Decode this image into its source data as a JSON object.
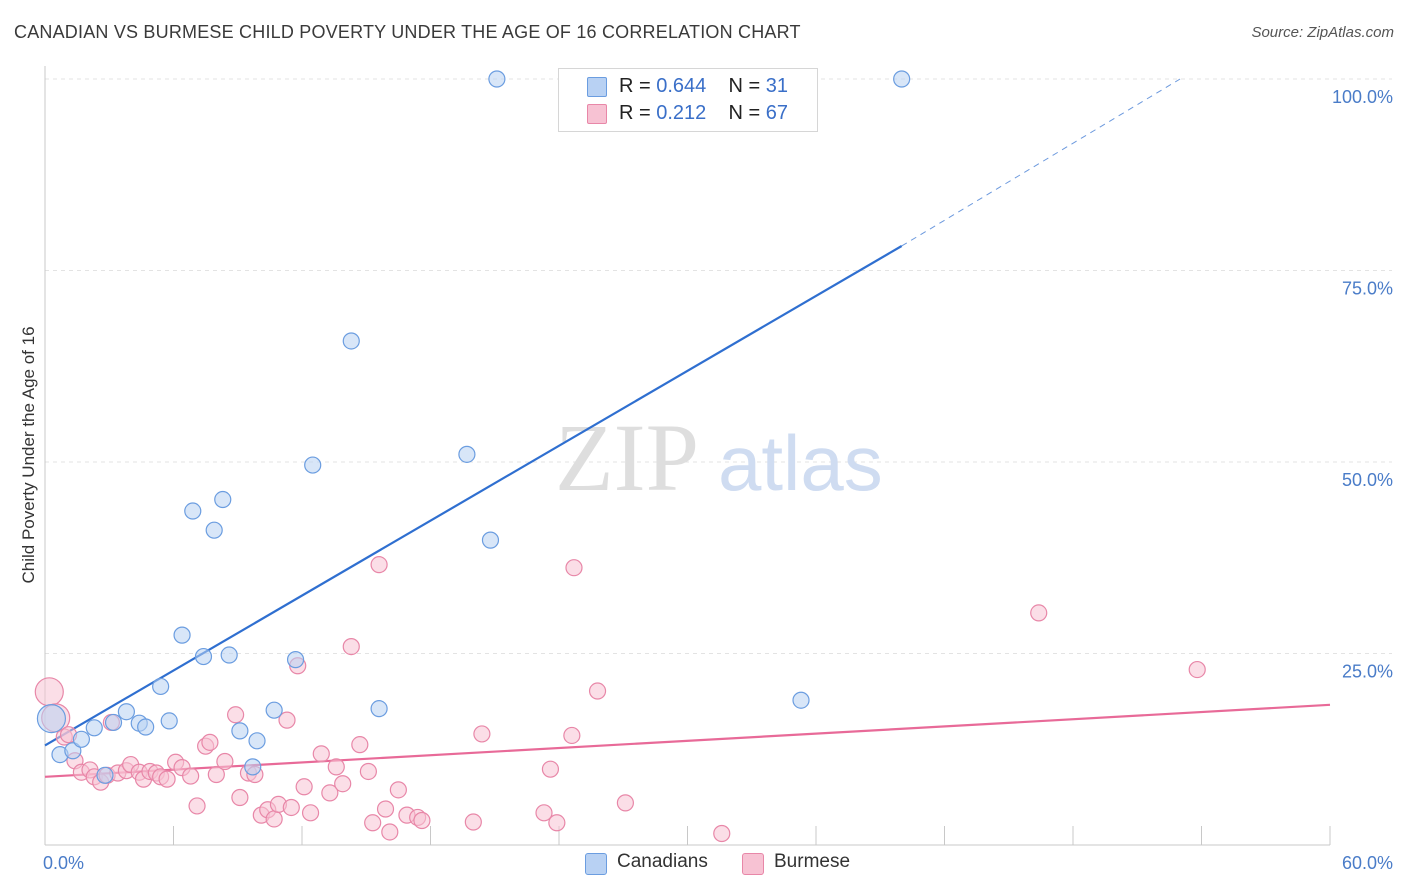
{
  "title": "CANADIAN VS BURMESE CHILD POVERTY UNDER THE AGE OF 16 CORRELATION CHART",
  "source": "Source: ZipAtlas.com",
  "watermark": {
    "zip": "ZIP",
    "atlas": "atlas"
  },
  "legend": {
    "items": [
      {
        "r_label": "R =",
        "r_value": "0.644",
        "n_label": "N =",
        "n_value": "31"
      },
      {
        "r_label": "R =",
        "r_value": "0.212",
        "n_label": "N =",
        "n_value": "67"
      }
    ]
  },
  "bottom_legend": [
    "Canadians",
    "Burmese"
  ],
  "chart_data": {
    "type": "scatter",
    "title": "CANADIAN VS BURMESE CHILD POVERTY UNDER THE AGE OF 16 CORRELATION CHART",
    "xlabel": "",
    "ylabel": "Child Poverty Under the Age of 16",
    "xlim": [
      0,
      60
    ],
    "ylim": [
      0,
      100
    ],
    "x_tick_labels": [
      "0.0%",
      "60.0%"
    ],
    "y_ticks": [
      25,
      50,
      75,
      100
    ],
    "y_tick_labels": [
      "25.0%",
      "50.0%",
      "75.0%",
      "100.0%"
    ],
    "grid": true,
    "colors": {
      "canadians": "#6b9de0",
      "canadians_fill": "#b8d1f3",
      "burmese": "#e887a8",
      "burmese_fill": "#f7c2d3",
      "line_canadians": "#2f6fd0",
      "line_burmese": "#e86a98"
    },
    "series": [
      {
        "name": "Canadians",
        "points": [
          [
            0.3,
            16.5
          ],
          [
            0.7,
            11.8
          ],
          [
            1.3,
            12.3
          ],
          [
            1.7,
            13.8
          ],
          [
            2.3,
            15.3
          ],
          [
            2.8,
            9.1
          ],
          [
            3.2,
            16.0
          ],
          [
            3.8,
            17.4
          ],
          [
            4.4,
            15.9
          ],
          [
            4.7,
            15.4
          ],
          [
            5.4,
            20.7
          ],
          [
            5.8,
            16.2
          ],
          [
            6.4,
            27.4
          ],
          [
            6.9,
            43.6
          ],
          [
            7.4,
            24.6
          ],
          [
            7.9,
            41.1
          ],
          [
            8.3,
            45.1
          ],
          [
            8.6,
            24.8
          ],
          [
            9.1,
            14.9
          ],
          [
            9.7,
            10.2
          ],
          [
            9.9,
            13.6
          ],
          [
            10.7,
            17.6
          ],
          [
            11.7,
            24.2
          ],
          [
            12.5,
            49.6
          ],
          [
            14.3,
            65.8
          ],
          [
            15.6,
            17.8
          ],
          [
            19.7,
            51.0
          ],
          [
            20.8,
            39.8
          ],
          [
            21.1,
            100.0
          ],
          [
            35.3,
            18.9
          ],
          [
            40.0,
            100.0
          ]
        ],
        "trend": {
          "x0": 0,
          "y0": 13.0,
          "x1": 40.0,
          "y1": 78.2,
          "dashed_to_x": 53.0,
          "dashed_to_y": 100.0
        }
      },
      {
        "name": "Burmese",
        "points": [
          [
            0.2,
            20.0
          ],
          [
            0.5,
            16.6
          ],
          [
            0.9,
            14.1
          ],
          [
            1.1,
            14.4
          ],
          [
            1.4,
            11.0
          ],
          [
            1.7,
            9.5
          ],
          [
            2.1,
            9.8
          ],
          [
            2.3,
            8.9
          ],
          [
            2.6,
            8.2
          ],
          [
            2.9,
            9.1
          ],
          [
            3.1,
            16.0
          ],
          [
            3.4,
            9.4
          ],
          [
            3.8,
            9.7
          ],
          [
            4.0,
            10.5
          ],
          [
            4.4,
            9.5
          ],
          [
            4.6,
            8.6
          ],
          [
            4.9,
            9.6
          ],
          [
            5.2,
            9.4
          ],
          [
            5.4,
            8.9
          ],
          [
            5.7,
            8.6
          ],
          [
            6.1,
            10.8
          ],
          [
            6.4,
            10.1
          ],
          [
            6.8,
            9.0
          ],
          [
            7.1,
            5.1
          ],
          [
            7.5,
            12.9
          ],
          [
            7.7,
            13.4
          ],
          [
            8.0,
            9.2
          ],
          [
            8.4,
            10.9
          ],
          [
            8.9,
            17.0
          ],
          [
            9.1,
            6.2
          ],
          [
            9.5,
            9.4
          ],
          [
            9.8,
            9.2
          ],
          [
            10.1,
            3.9
          ],
          [
            10.4,
            4.6
          ],
          [
            10.7,
            3.4
          ],
          [
            10.9,
            5.3
          ],
          [
            11.3,
            16.3
          ],
          [
            11.5,
            4.9
          ],
          [
            11.8,
            23.4
          ],
          [
            12.1,
            7.6
          ],
          [
            12.4,
            4.2
          ],
          [
            12.9,
            11.9
          ],
          [
            13.3,
            6.8
          ],
          [
            13.6,
            10.2
          ],
          [
            13.9,
            8.0
          ],
          [
            14.3,
            25.9
          ],
          [
            14.7,
            13.1
          ],
          [
            15.1,
            9.6
          ],
          [
            15.3,
            2.9
          ],
          [
            15.6,
            36.6
          ],
          [
            15.9,
            4.7
          ],
          [
            16.1,
            1.7
          ],
          [
            16.5,
            7.2
          ],
          [
            16.9,
            3.9
          ],
          [
            17.4,
            3.6
          ],
          [
            17.6,
            3.2
          ],
          [
            20.0,
            3.0
          ],
          [
            20.4,
            14.5
          ],
          [
            23.3,
            4.2
          ],
          [
            23.6,
            9.9
          ],
          [
            23.9,
            2.9
          ],
          [
            24.6,
            14.3
          ],
          [
            24.7,
            36.2
          ],
          [
            25.8,
            20.1
          ],
          [
            27.1,
            5.5
          ],
          [
            31.6,
            1.5
          ],
          [
            46.4,
            30.3
          ],
          [
            53.8,
            22.9
          ]
        ],
        "trend": {
          "x0": 0,
          "y0": 8.9,
          "x1": 60.0,
          "y1": 18.3
        }
      }
    ]
  }
}
